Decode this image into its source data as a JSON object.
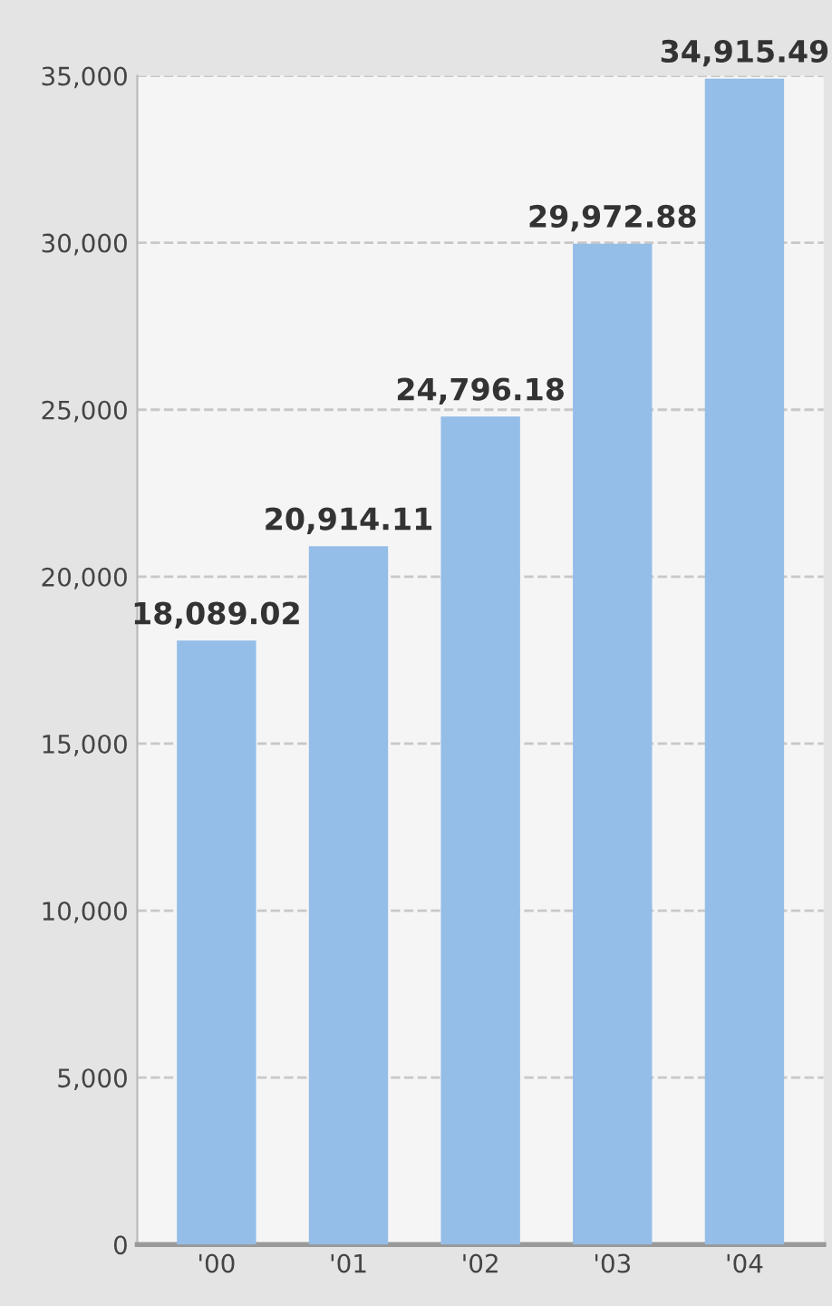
{
  "chart_data": {
    "type": "bar",
    "categories": [
      "'00",
      "'01",
      "'02",
      "'03",
      "'04"
    ],
    "values": [
      18089.02,
      20914.11,
      24796.18,
      29972.88,
      34915.49
    ],
    "value_labels": [
      "18,089.02",
      "20,914.11",
      "24,796.18",
      "29,972.88",
      "34,915.49"
    ],
    "color": "#94bde8",
    "ylim": [
      0,
      35000
    ],
    "yticks": [
      {
        "value": 0,
        "label": "0"
      },
      {
        "value": 5000,
        "label": "5,000"
      },
      {
        "value": 10000,
        "label": "10,000"
      },
      {
        "value": 15000,
        "label": "15,000"
      },
      {
        "value": 20000,
        "label": "20,000"
      },
      {
        "value": 25000,
        "label": "25,000"
      },
      {
        "value": 30000,
        "label": "30,000"
      },
      {
        "value": 35000,
        "label": "35,000"
      }
    ],
    "grid": "y",
    "line_style": "dashed"
  }
}
